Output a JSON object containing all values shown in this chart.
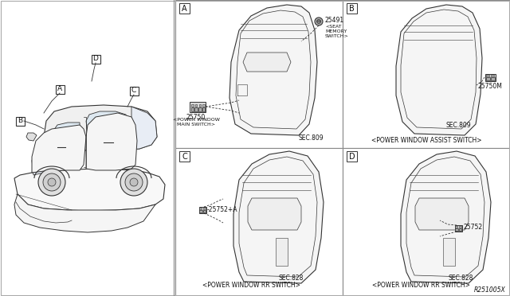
{
  "bg_color": "#ffffff",
  "border_color": "#999999",
  "line_color": "#333333",
  "text_color": "#111111",
  "fig_width": 6.4,
  "fig_height": 3.72,
  "dpi": 100,
  "ref_code": "R251005X",
  "part_numbers": {
    "main_switch": "25750",
    "main_switch_label": "<POWER WINDOW\nMAIN SWITCH>",
    "seat_memory": "25491",
    "seat_memory_label": "<SEAT\nMEMORY\nSWITCH>",
    "sec809": "SEC.809",
    "assist_switch": "25750M",
    "assist_label": "<POWER WINDOW ASSIST SWITCH>",
    "rr_switch_C": "25752+A",
    "sec828_C": "SEC.828",
    "rr_label_C": "<POWER WINDOW RR SWITCH>",
    "rr_switch_D": "25752",
    "sec828_D": "SEC.828",
    "rr_label_D": "<POWER WINDOW RR SWITCH>"
  }
}
